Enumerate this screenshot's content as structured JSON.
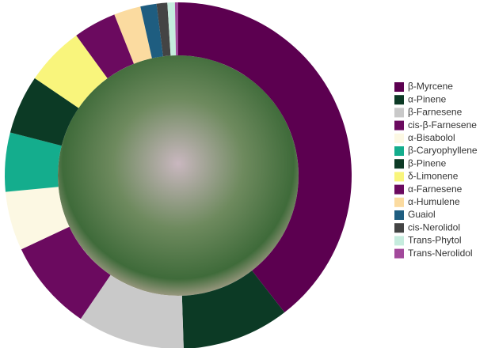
{
  "chart_data": {
    "type": "donut",
    "categories": [
      "β-Myrcene",
      "α-Pinene",
      "β-Farnesene",
      "cis-β-Farnesene",
      "α-Bisabolol",
      "β-Caryophyllene",
      "β-Pinene",
      "δ-Limonene",
      "α-Farnesene",
      "α-Humulene",
      "Guaiol",
      "cis-Nerolidol",
      "Trans-Phytol",
      "Trans-Nerolidol"
    ],
    "values": [
      39.5,
      10,
      10,
      8.5,
      5.5,
      5.5,
      5.5,
      5.5,
      4,
      2.5,
      1.5,
      1,
      0.7,
      0.3
    ],
    "colors": [
      "#5c0050",
      "#0c3a25",
      "#c9c9c9",
      "#6b0a5f",
      "#fcf8e3",
      "#14ad8d",
      "#0c3a25",
      "#f9f57c",
      "#6b0a5f",
      "#fbdba0",
      "#1e5d80",
      "#444444",
      "#c6ecde",
      "#a2499b"
    ],
    "legend": "right"
  }
}
